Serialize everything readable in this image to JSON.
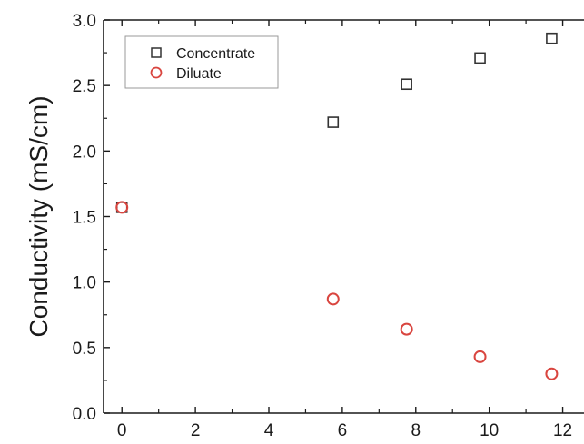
{
  "chart_data": {
    "type": "scatter",
    "title": "",
    "xlabel": "",
    "ylabel": "Conductivity (mS/cm)",
    "xlim": [
      -0.5,
      13
    ],
    "ylim": [
      0,
      3.0
    ],
    "x_ticks": [
      0,
      2,
      4,
      6,
      8,
      10,
      12
    ],
    "y_ticks": [
      0.0,
      0.5,
      1.0,
      1.5,
      2.0,
      2.5,
      3.0
    ],
    "x_tick_labels": [
      "0",
      "2",
      "4",
      "6",
      "8",
      "10",
      "12"
    ],
    "y_tick_labels": [
      "0.0",
      "0.5",
      "1.0",
      "1.5",
      "2.0",
      "2.5",
      "3.0"
    ],
    "grid": false,
    "legend_position": "top-left",
    "series": [
      {
        "name": "Concentrate",
        "marker": "square",
        "color": "#333333",
        "x": [
          0,
          5.75,
          7.75,
          9.75,
          11.7
        ],
        "y": [
          1.57,
          2.22,
          2.51,
          2.71,
          2.86
        ]
      },
      {
        "name": "Diluate",
        "marker": "circle",
        "color": "#d9453f",
        "x": [
          0,
          5.75,
          7.75,
          9.75,
          11.7
        ],
        "y": [
          1.57,
          0.87,
          0.64,
          0.43,
          0.3
        ]
      }
    ]
  }
}
